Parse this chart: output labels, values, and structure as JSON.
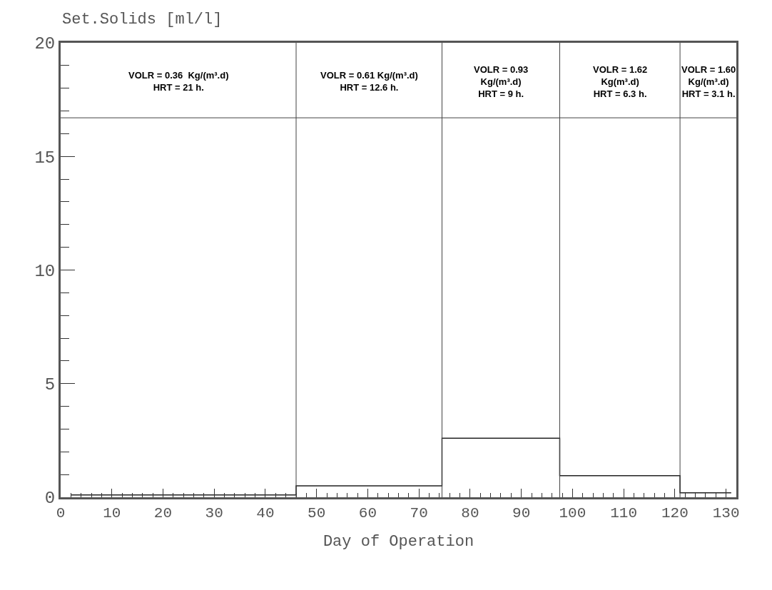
{
  "chart_data": {
    "type": "step",
    "ylabel": "Set.Solids [ml/l]",
    "xlabel": "Day of Operation",
    "x": [
      2,
      46,
      74.5,
      97.5,
      121,
      131
    ],
    "values": [
      0.1,
      0.5,
      2.6,
      0.95,
      0.2,
      0.2
    ],
    "color": "#222222",
    "line_style": "solid",
    "marker": "none",
    "grid": false,
    "xlim": [
      0,
      132
    ],
    "xticks": [
      0,
      10,
      20,
      30,
      40,
      50,
      60,
      70,
      80,
      90,
      100,
      110,
      120,
      130
    ],
    "ylim": [
      0,
      20
    ],
    "yticks": [
      0,
      5,
      10,
      15,
      20
    ],
    "ref_lines": [
      {
        "axis": "x",
        "value": 46
      },
      {
        "axis": "x",
        "value": 74.5
      },
      {
        "axis": "x",
        "value": 97.5
      },
      {
        "axis": "x",
        "value": 121
      },
      {
        "axis": "y",
        "value": 16.7
      }
    ],
    "annotations": [
      "VOLR = 0.36  Kg/(m³.d)\nHRT = 21 h.",
      "VOLR = 0.61 Kg/(m³.d)\nHRT = 12.6 h.",
      "VOLR = 0.93\nKg/(m³.d)\nHRT = 9 h.",
      "VOLR = 1.62\nKg(m³.d)\nHRT = 6.3 h.",
      "VOLR = 1.60\nKg/(m³.d)\nHRT = 3.1 h."
    ]
  }
}
